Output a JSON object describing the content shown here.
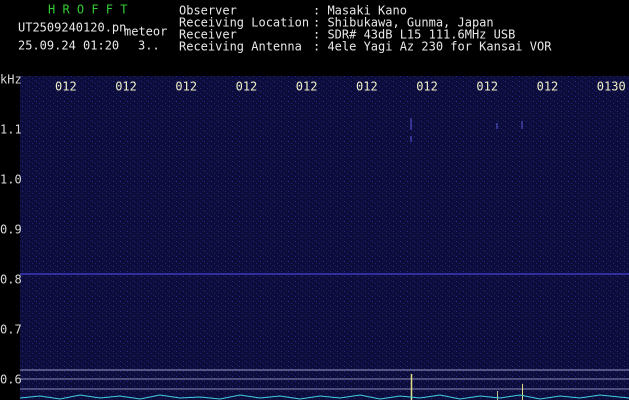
{
  "header": {
    "app_name": "H R O F F T",
    "file_name": "UT2509240120.pn",
    "tag": "meteor",
    "datetime": "25.09.24 01:20",
    "count": "3..",
    "fields": [
      {
        "label": "Observer",
        "value": ": Masaki Kano"
      },
      {
        "label": "Receiving Location",
        "value": ": Shibukawa, Gunma, Japan"
      },
      {
        "label": "Receiver",
        "value": ": SDR# 43dB L15 111.6MHz USB"
      },
      {
        "label": "Receiving Antenna",
        "value": ": 4ele Yagi Az 230 for Kansai VOR"
      }
    ]
  },
  "spectrogram": {
    "unit": "kHz",
    "time_labels": [
      "012",
      "012",
      "012",
      "012",
      "012",
      "012",
      "012",
      "012",
      "012",
      "0130"
    ],
    "freq_labels": [
      "1.1",
      "1.0",
      "0.9",
      "0.8",
      "0.7",
      "0.6"
    ]
  }
}
